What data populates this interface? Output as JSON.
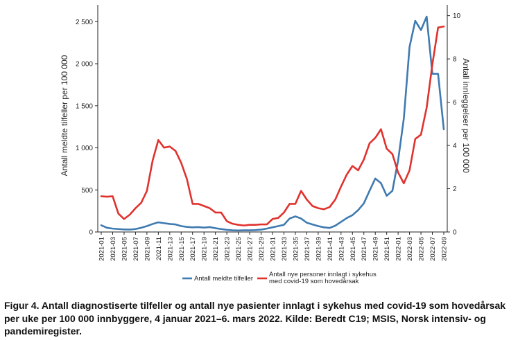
{
  "chart_data": {
    "type": "line",
    "xlabel": "",
    "categories": [
      "2021-01",
      "2021-02",
      "2021-03",
      "2021-04",
      "2021-05",
      "2021-06",
      "2021-07",
      "2021-08",
      "2021-09",
      "2021-10",
      "2021-11",
      "2021-12",
      "2021-13",
      "2021-14",
      "2021-15",
      "2021-16",
      "2021-17",
      "2021-18",
      "2021-19",
      "2021-20",
      "2021-21",
      "2021-22",
      "2021-23",
      "2021-24",
      "2021-25",
      "2021-26",
      "2021-27",
      "2021-28",
      "2021-29",
      "2021-30",
      "2021-31",
      "2021-32",
      "2021-33",
      "2021-34",
      "2021-35",
      "2021-36",
      "2021-37",
      "2021-38",
      "2021-39",
      "2021-40",
      "2021-41",
      "2021-42",
      "2021-43",
      "2021-44",
      "2021-45",
      "2021-46",
      "2021-47",
      "2021-48",
      "2021-49",
      "2021-50",
      "2021-51",
      "2021-52",
      "2022-01",
      "2022-02",
      "2022-03",
      "2022-04",
      "2022-05",
      "2022-06",
      "2022-07",
      "2022-08",
      "2022-09"
    ],
    "tick_labels": [
      "2021-01",
      "2021-03",
      "2021-05",
      "2021-07",
      "2021-09",
      "2021-11",
      "2021-13",
      "2021-15",
      "2021-17",
      "2021-19",
      "2021-21",
      "2021-23",
      "2021-25",
      "2021-27",
      "2021-29",
      "2021-31",
      "2021-33",
      "2021-35",
      "2021-37",
      "2021-39",
      "2021-41",
      "2021-43",
      "2021-45",
      "2021-47",
      "2021-49",
      "2021-51",
      "2022-01",
      "2022-03",
      "2022-05",
      "2022-07",
      "2022-09"
    ],
    "y_left": {
      "label": "Antall meldte tilfeller per 100 000",
      "range": [
        0,
        2700
      ],
      "ticks": [
        0,
        500,
        1000,
        1500,
        2000,
        2500
      ],
      "tick_labels": [
        "0",
        "500",
        "1 000",
        "1 500",
        "2 000",
        "2 500"
      ]
    },
    "y_right": {
      "label": "Antall innleggelser per 100 000",
      "range": [
        0,
        10.5
      ],
      "ticks": [
        0,
        2,
        4,
        6,
        8,
        10
      ],
      "tick_labels": [
        "0",
        "2",
        "4",
        "6",
        "8",
        "10"
      ]
    },
    "series": [
      {
        "name": "Antall meldte tilfeller",
        "axis": "left",
        "color": "#3f7ab0",
        "values": [
          80,
          50,
          40,
          35,
          30,
          28,
          35,
          50,
          70,
          95,
          115,
          105,
          95,
          90,
          70,
          60,
          55,
          58,
          52,
          58,
          45,
          35,
          25,
          20,
          18,
          20,
          20,
          22,
          28,
          40,
          55,
          70,
          85,
          160,
          185,
          160,
          110,
          90,
          70,
          55,
          48,
          75,
          120,
          165,
          200,
          260,
          340,
          490,
          635,
          580,
          430,
          490,
          850,
          1350,
          2200,
          2510,
          2400,
          2560,
          1880,
          1880,
          1220
        ]
      },
      {
        "name": "Antall nye personer innlagt i sykehus med covid-19 som hovedårsak",
        "axis": "right",
        "color": "#e0322d",
        "values": [
          1.65,
          1.63,
          1.65,
          0.85,
          0.6,
          0.8,
          1.1,
          1.35,
          1.9,
          3.3,
          4.25,
          3.9,
          3.95,
          3.75,
          3.2,
          2.45,
          1.3,
          1.3,
          1.2,
          1.1,
          0.9,
          0.9,
          0.5,
          0.38,
          0.33,
          0.3,
          0.33,
          0.33,
          0.35,
          0.35,
          0.6,
          0.65,
          0.9,
          1.3,
          1.3,
          1.9,
          1.5,
          1.2,
          1.1,
          1.05,
          1.15,
          1.5,
          2.1,
          2.65,
          3.05,
          2.85,
          3.35,
          4.1,
          4.35,
          4.75,
          3.85,
          3.6,
          2.75,
          2.25,
          2.85,
          4.3,
          4.5,
          5.75,
          7.75,
          9.45,
          9.5
        ]
      }
    ],
    "legend": {
      "position": "bottom-center",
      "entries": [
        {
          "lines": [
            "Antall meldte tilfeller"
          ],
          "color": "#3f7ab0"
        },
        {
          "lines": [
            "Antall nye personer innlagt i sykehus",
            "med covid-19 som hovedårsak"
          ],
          "color": "#e0322d"
        }
      ]
    },
    "grid": false
  },
  "caption": "Figur 4. Antall diagnostiserte tilfeller og antall nye pasienter innlagt i sykehus med covid-19 som hovedårsak per uke per 100 000 innbyggere, 4 januar 2021–6. mars 2022. Kilde: Beredt C19; MSIS, Norsk intensiv- og pandemiregister."
}
